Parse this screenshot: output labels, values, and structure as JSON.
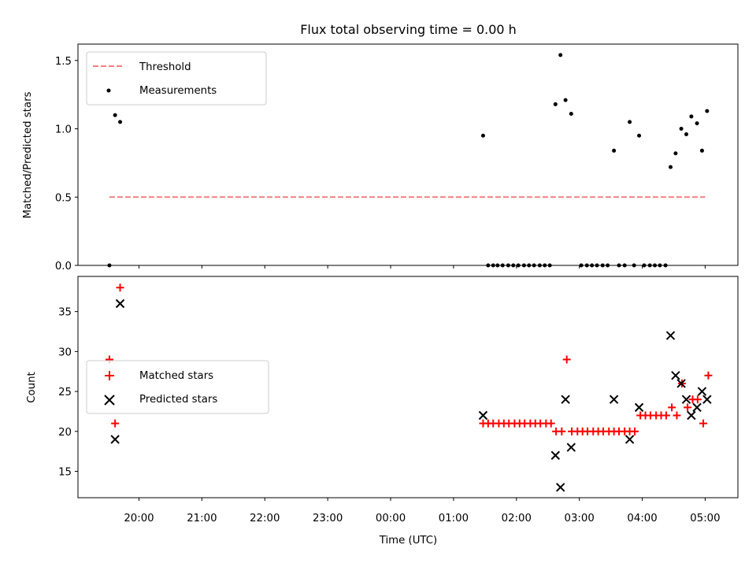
{
  "title": "Flux total observing time = 0.00 h",
  "xlabel": "Time (UTC)",
  "x_tick_labels": [
    "20:00",
    "21:00",
    "22:00",
    "23:00",
    "00:00",
    "01:00",
    "02:00",
    "03:00",
    "04:00",
    "05:00"
  ],
  "colors": {
    "threshold": "#f08080",
    "measurements": "#000000",
    "matched": "#ff0000",
    "predicted": "#000000"
  },
  "chart_data": [
    {
      "type": "scatter",
      "panel": "top",
      "ylabel": "Matched/Predicted stars",
      "ylim": [
        0.0,
        1.62
      ],
      "yticks": [
        0.0,
        0.5,
        1.0,
        1.5
      ],
      "ytick_labels": [
        "0.0",
        "0.5",
        "1.0",
        "1.5"
      ],
      "xlim_hours": [
        19.03,
        29.52
      ],
      "legend": {
        "placement": "upper-left",
        "entries": [
          "Threshold",
          "Measurements"
        ]
      },
      "threshold": {
        "name": "Threshold",
        "value": 0.5,
        "x_from_hours": 19.53,
        "x_to_hours": 29.0
      },
      "series": [
        {
          "name": "Measurements",
          "x_hours": [
            19.53,
            19.62,
            19.7,
            25.47,
            26.62,
            26.7,
            26.78,
            26.87,
            27.55,
            27.8,
            27.95,
            28.45,
            28.53,
            28.62,
            28.7,
            28.78,
            28.87,
            28.95,
            29.03,
            25.55,
            25.63,
            25.7,
            25.78,
            25.87,
            25.95,
            26.03,
            26.12,
            26.2,
            26.28,
            26.37,
            26.45,
            26.53,
            27.03,
            27.12,
            27.2,
            27.28,
            27.37,
            27.45,
            27.63,
            27.72,
            27.87,
            28.03,
            28.12,
            28.2,
            28.28,
            28.37
          ],
          "y": [
            0.0,
            1.1,
            1.05,
            0.95,
            1.18,
            1.54,
            1.21,
            1.11,
            0.84,
            1.05,
            0.95,
            0.72,
            0.82,
            1.0,
            0.96,
            1.09,
            1.04,
            0.84,
            1.13,
            0,
            0,
            0,
            0,
            0,
            0,
            0,
            0,
            0,
            0,
            0,
            0,
            0,
            0,
            0,
            0,
            0,
            0,
            0,
            0,
            0,
            0,
            0,
            0,
            0,
            0,
            0
          ]
        }
      ]
    },
    {
      "type": "scatter",
      "panel": "bottom",
      "ylabel": "Count",
      "ylim": [
        11.7,
        39.4
      ],
      "yticks": [
        15,
        20,
        25,
        30,
        35
      ],
      "ytick_labels": [
        "15",
        "20",
        "25",
        "30",
        "35"
      ],
      "xlim_hours": [
        19.03,
        29.52
      ],
      "legend": {
        "placement": "center-left",
        "entries": [
          "Matched stars",
          "Predicted stars"
        ]
      },
      "series": [
        {
          "name": "Matched stars",
          "marker": "+",
          "x_hours": [
            19.53,
            19.62,
            19.7,
            25.47,
            25.55,
            25.63,
            25.72,
            25.8,
            25.88,
            25.97,
            26.05,
            26.13,
            26.22,
            26.3,
            26.38,
            26.47,
            26.55,
            26.63,
            26.72,
            26.8,
            26.88,
            26.97,
            27.05,
            27.13,
            27.22,
            27.3,
            27.38,
            27.47,
            27.55,
            27.63,
            27.72,
            27.8,
            27.88,
            27.97,
            28.05,
            28.13,
            28.22,
            28.3,
            28.38,
            28.47,
            28.55,
            28.63,
            28.72,
            28.8,
            28.88,
            28.97,
            29.05
          ],
          "y": [
            29,
            21,
            38,
            21,
            21,
            21,
            21,
            21,
            21,
            21,
            21,
            21,
            21,
            21,
            21,
            21,
            21,
            20,
            20,
            29,
            20,
            20,
            20,
            20,
            20,
            20,
            20,
            20,
            20,
            20,
            20,
            20,
            20,
            22,
            22,
            22,
            22,
            22,
            22,
            23,
            22,
            26,
            23,
            24,
            24,
            21,
            27
          ]
        },
        {
          "name": "Predicted stars",
          "marker": "x",
          "x_hours": [
            19.62,
            19.7,
            25.47,
            26.62,
            26.7,
            26.78,
            26.87,
            27.55,
            27.8,
            27.95,
            28.45,
            28.53,
            28.62,
            28.7,
            28.78,
            28.87,
            28.95,
            29.03
          ],
          "y": [
            19,
            36,
            22,
            17,
            13,
            24,
            18,
            24,
            19,
            23,
            32,
            27,
            26,
            24,
            22,
            23,
            25,
            24
          ]
        }
      ]
    }
  ]
}
